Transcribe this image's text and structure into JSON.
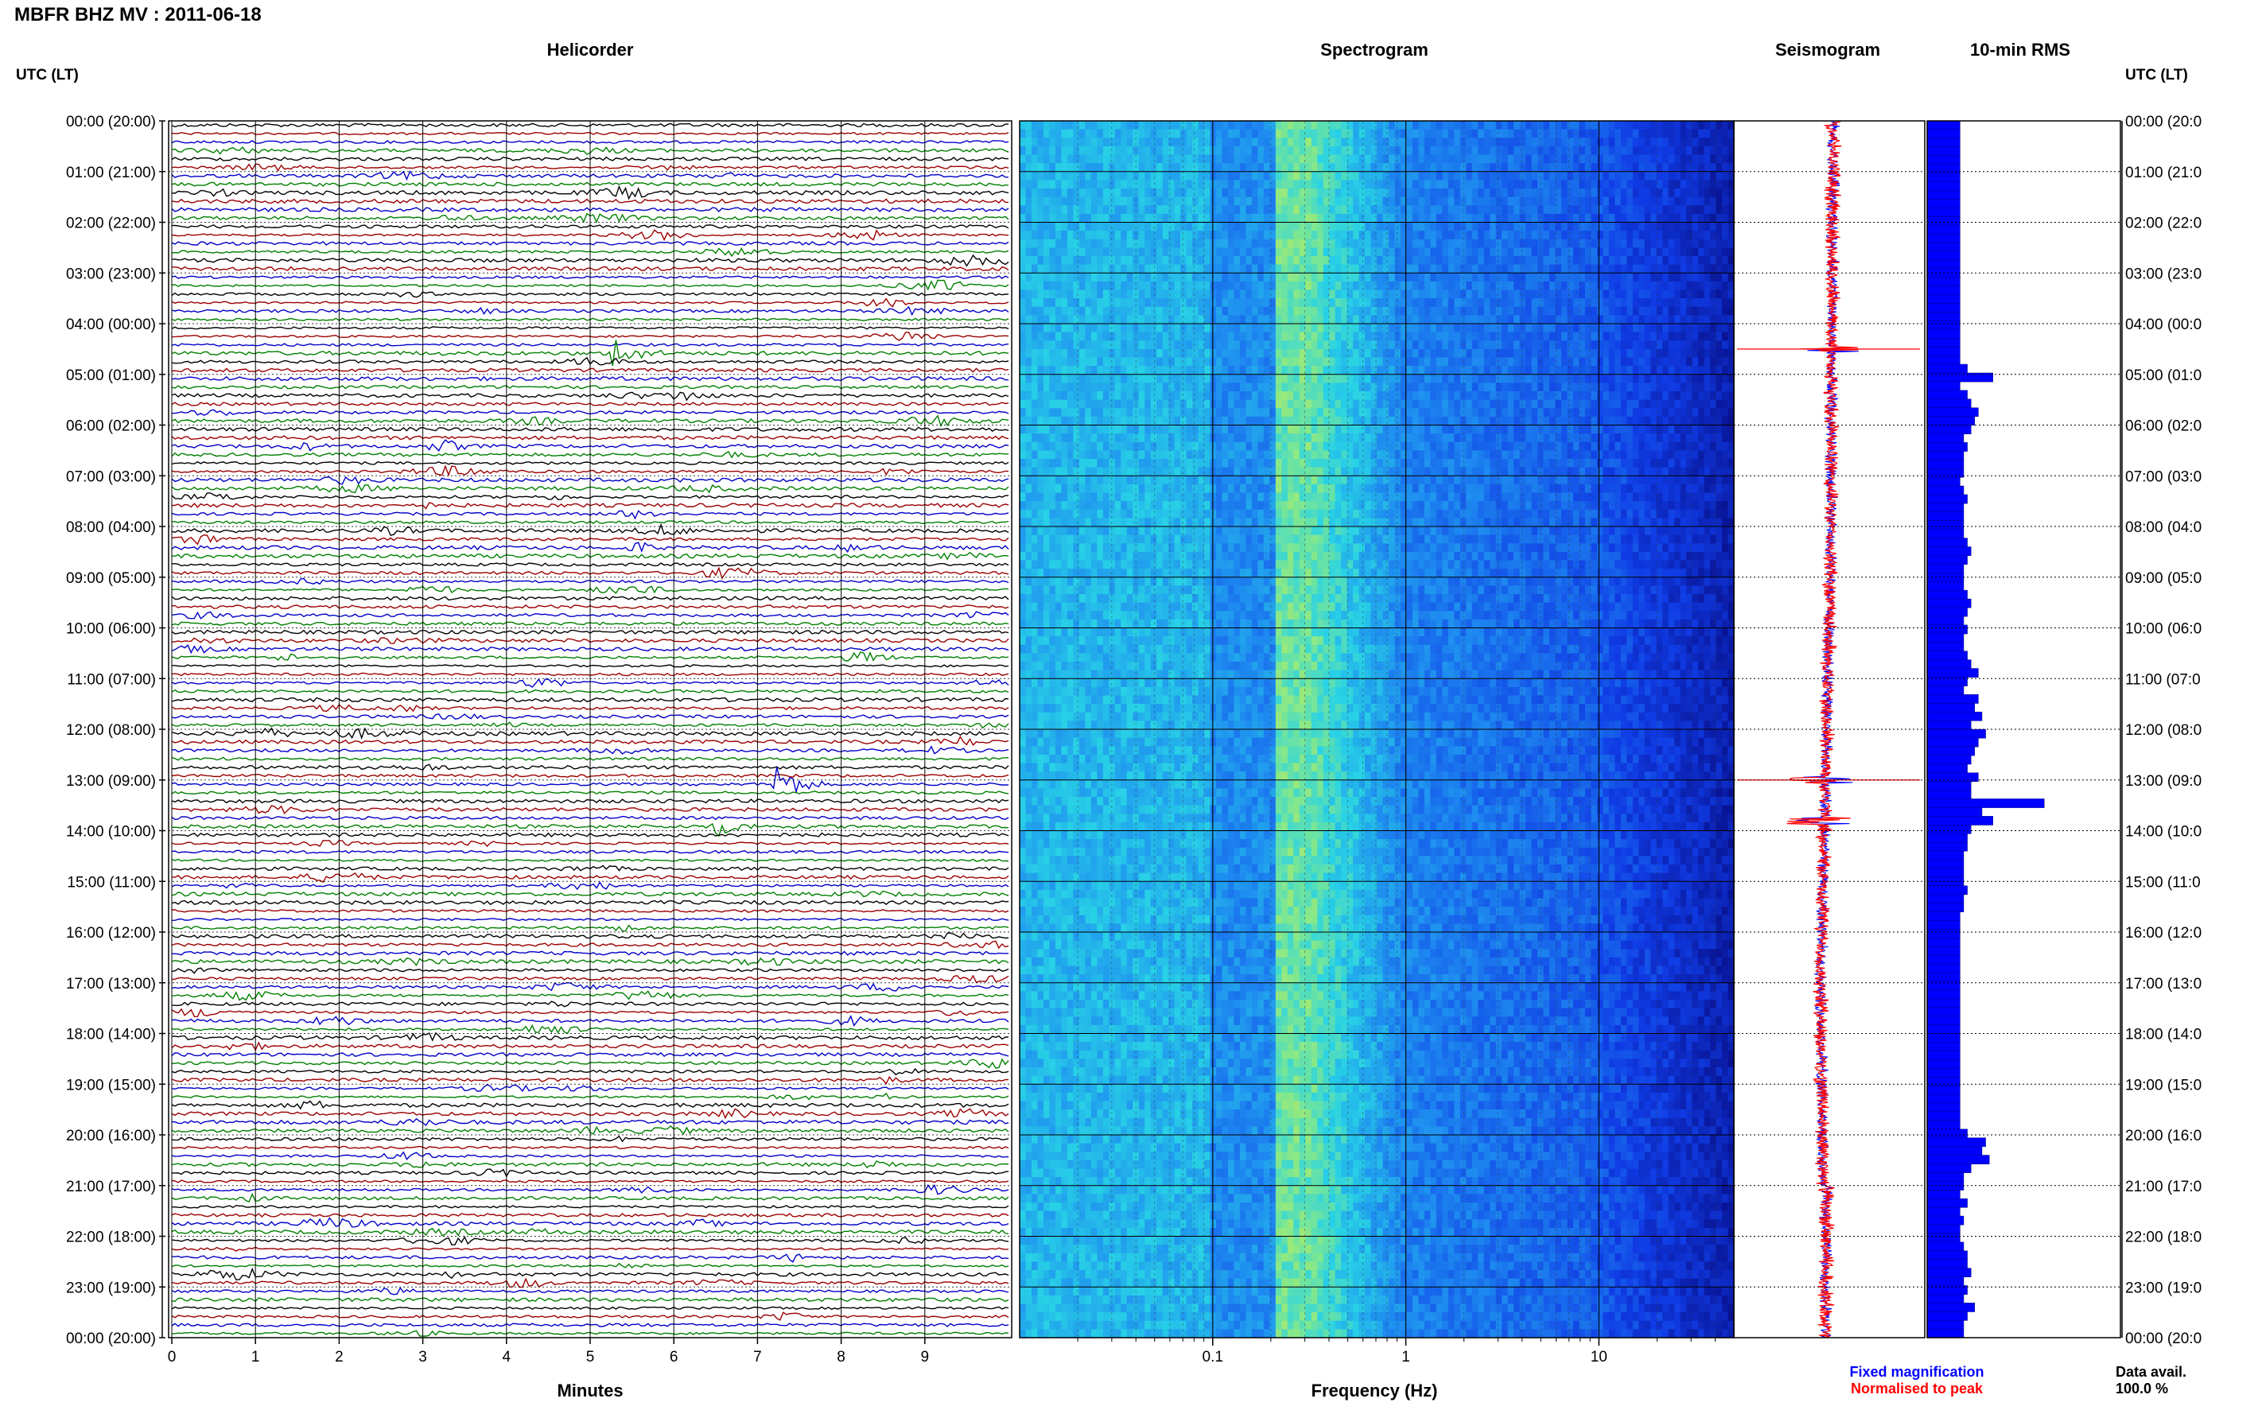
{
  "header": {
    "title": "MBFR BHZ MV : 2011-06-18"
  },
  "panels": {
    "helicorder": "Helicorder",
    "spectrogram": "Spectrogram",
    "seismogram": "Seismogram",
    "rms": "10-min RMS"
  },
  "axes": {
    "left_label": "UTC (LT)",
    "right_label": "UTC (LT)",
    "minutes_label": "Minutes",
    "frequency_label": "Frequency (Hz)"
  },
  "legend": {
    "fixed": "Fixed magnification",
    "normalised": "Normalised to peak",
    "fixed_color": "#0000ff",
    "normalised_color": "#ff0000"
  },
  "availability": {
    "label": "Data avail.",
    "value": "100.0 %"
  },
  "colors": {
    "trace_cycle": [
      "#000000",
      "#9c0000",
      "#0000c8",
      "#008000"
    ],
    "rms_fill": "#0000ff",
    "seismogram_fixed": "#0000ff",
    "seismogram_norm": "#ff0000"
  },
  "chart_data": {
    "type": "helicorder",
    "time_ticks_left": [
      "00:00 (20:00)",
      "01:00 (21:00)",
      "02:00 (22:00)",
      "03:00 (23:00)",
      "04:00 (00:00)",
      "05:00 (01:00)",
      "06:00 (02:00)",
      "07:00 (03:00)",
      "08:00 (04:00)",
      "09:00 (05:00)",
      "10:00 (06:00)",
      "11:00 (07:00)",
      "12:00 (08:00)",
      "13:00 (09:00)",
      "14:00 (10:00)",
      "15:00 (11:00)",
      "16:00 (12:00)",
      "17:00 (13:00)",
      "18:00 (14:00)",
      "19:00 (15:00)",
      "20:00 (16:00)",
      "21:00 (17:00)",
      "22:00 (18:00)",
      "23:00 (19:00)",
      "00:00 (20:00)"
    ],
    "time_ticks_right": [
      "00:00 (20:0",
      "01:00 (21:0",
      "02:00 (22:0",
      "03:00 (23:0",
      "04:00 (00:0",
      "05:00 (01:0",
      "06:00 (02:0",
      "07:00 (03:0",
      "08:00 (04:0",
      "09:00 (05:0",
      "10:00 (06:0",
      "11:00 (07:0",
      "12:00 (08:0",
      "13:00 (09:0",
      "14:00 (10:0",
      "15:00 (11:0",
      "16:00 (12:0",
      "17:00 (13:0",
      "18:00 (14:0",
      "19:00 (15:0",
      "20:00 (16:0",
      "21:00 (17:0",
      "22:00 (18:0",
      "23:00 (19:0",
      "00:00 (20:0"
    ],
    "minute_ticks": [
      "0",
      "1",
      "2",
      "3",
      "4",
      "5",
      "6",
      "7",
      "8",
      "9"
    ],
    "frequency_ticks": [
      "0.1",
      "1",
      "10"
    ],
    "frequency_range_hz": [
      0.01,
      50
    ],
    "rows_per_hour": 6,
    "events": [
      {
        "hour": 4.5,
        "minute": 5.3,
        "amplitude": 2.5
      },
      {
        "hour": 13.0,
        "minute": 7.2,
        "amplitude": 4.5
      },
      {
        "hour": 13.8,
        "minute": 6.5,
        "amplitude": 1.5
      }
    ],
    "rms": [
      0.9,
      0.9,
      0.9,
      0.9,
      0.9,
      0.9,
      0.9,
      0.9,
      0.9,
      0.9,
      0.9,
      0.9,
      0.9,
      0.9,
      0.9,
      0.9,
      0.9,
      0.9,
      0.9,
      0.9,
      0.9,
      0.9,
      0.9,
      0.9,
      0.9,
      0.9,
      0.9,
      0.9,
      1.1,
      1.8,
      0.9,
      1.1,
      1.2,
      1.4,
      1.3,
      1.2,
      1.0,
      1.1,
      1.0,
      1.0,
      1.0,
      0.9,
      1.0,
      1.1,
      1.0,
      1.0,
      1.0,
      1.0,
      1.1,
      1.2,
      1.1,
      1.0,
      1.0,
      1.0,
      1.1,
      1.2,
      1.1,
      1.0,
      1.1,
      1.0,
      1.0,
      1.1,
      1.2,
      1.4,
      1.1,
      1.0,
      1.4,
      1.3,
      1.5,
      1.2,
      1.6,
      1.4,
      1.3,
      1.2,
      1.1,
      1.4,
      1.2,
      1.2,
      3.2,
      1.5,
      1.8,
      1.2,
      1.1,
      1.1,
      1.0,
      1.0,
      1.0,
      1.0,
      1.1,
      1.0,
      1.0,
      0.9,
      0.9,
      0.9,
      0.9,
      0.9,
      0.9,
      0.9,
      0.9,
      0.9,
      0.9,
      0.9,
      0.9,
      0.9,
      0.9,
      0.9,
      0.9,
      0.9,
      0.9,
      0.9,
      0.9,
      0.9,
      0.9,
      0.9,
      0.9,
      0.9,
      1.1,
      1.6,
      1.5,
      1.7,
      1.2,
      1.0,
      1.0,
      0.9,
      1.1,
      0.9,
      1.0,
      0.9,
      0.9,
      1.0,
      1.1,
      1.1,
      1.2,
      1.0,
      1.1,
      1.0,
      1.3,
      1.1,
      1.0,
      1.0
    ]
  }
}
